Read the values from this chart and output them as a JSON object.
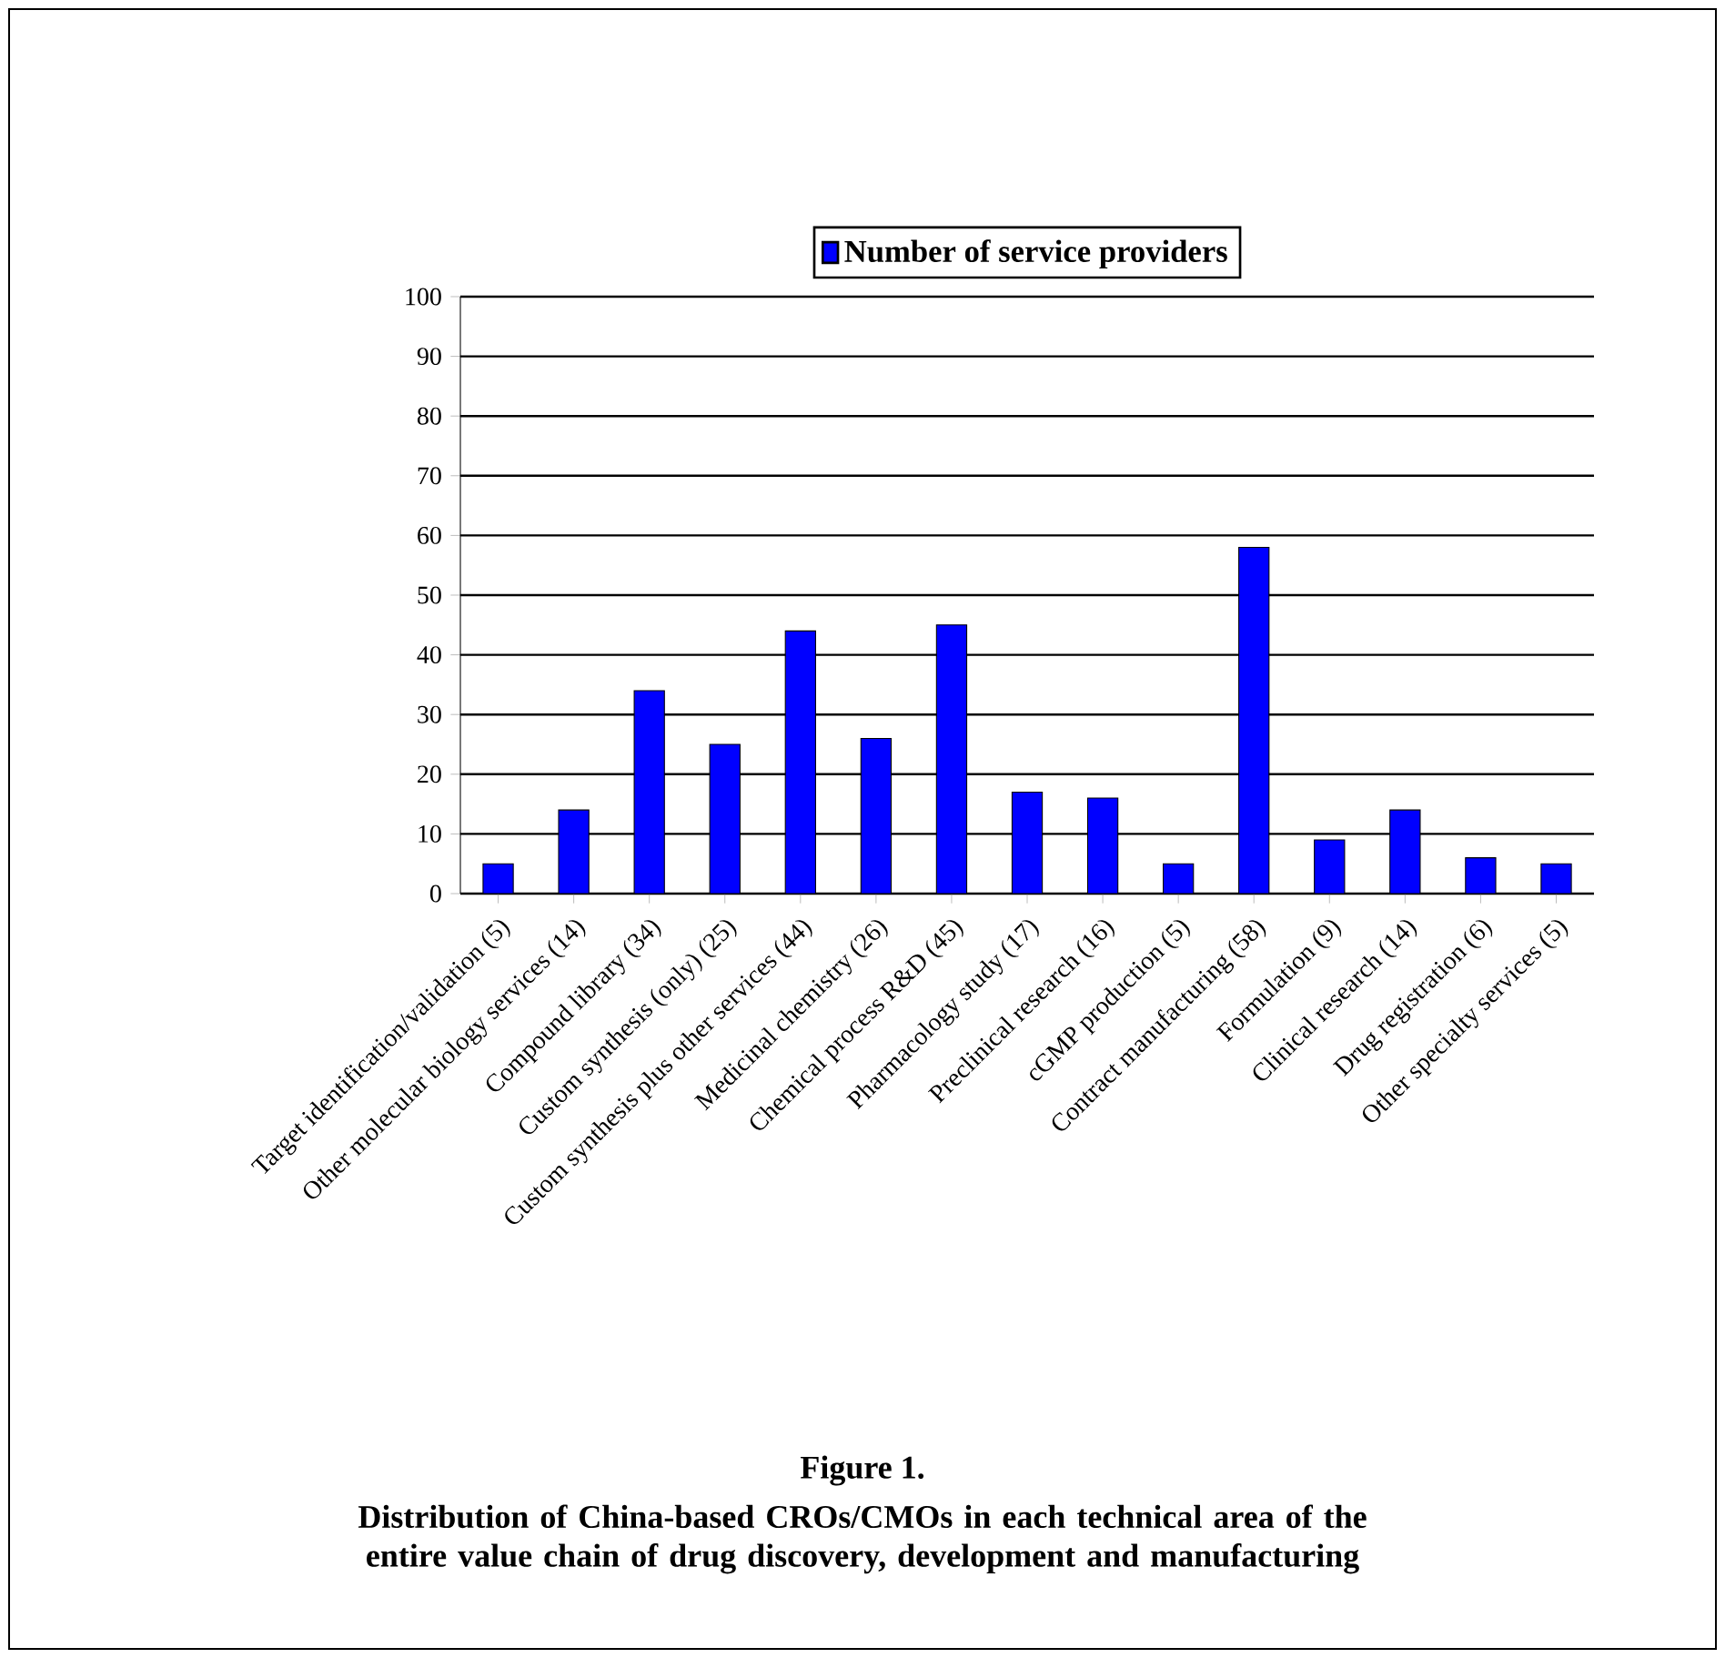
{
  "chart_data": {
    "type": "bar",
    "title": "Figure 1.",
    "subtitle": "Distribution of China-based CROs/CMOs in each technical area of the entire value chain of drug discovery, development and manufacturing",
    "categories": [
      "Target identification/validation (5)",
      "Other molecular biology services (14)",
      "Compound library (34)",
      "Custom synthesis (only) (25)",
      "Custom synthesis plus other services (44)",
      "Medicinal chemistry (26)",
      "Chemical process R&D (45)",
      "Pharmacology study (17)",
      "Preclinical research (16)",
      "cGMP production (5)",
      "Contract manufacturing (58)",
      "Formulation (9)",
      "Clinical research (14)",
      "Drug registration (6)",
      "Other specialty services (5)"
    ],
    "series": [
      {
        "name": "Number of service providers",
        "color": "#0000ff",
        "values": [
          5,
          14,
          34,
          25,
          44,
          26,
          45,
          17,
          16,
          5,
          58,
          9,
          14,
          6,
          5
        ]
      }
    ],
    "ylim": [
      0,
      100
    ],
    "yticks": [
      0,
      10,
      20,
      30,
      40,
      50,
      60,
      70,
      80,
      90,
      100
    ],
    "grid": "y",
    "legend": "top"
  }
}
